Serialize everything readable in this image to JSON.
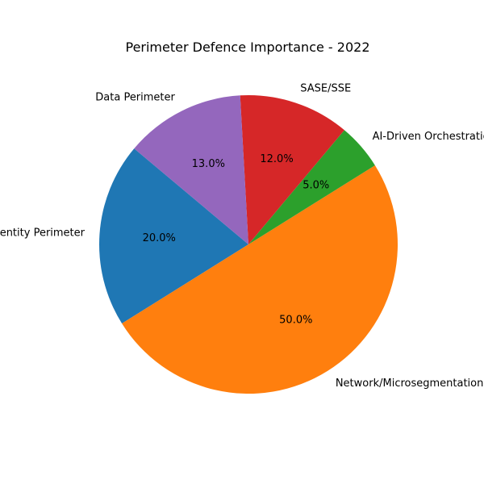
{
  "chart_data": {
    "type": "pie",
    "title": "Perimeter Defence Importance - 2022",
    "labels": [
      "Identity Perimeter",
      "Network/Microsegmentation",
      "AI-Driven Orchestration",
      "SASE/SSE",
      "Data Perimeter"
    ],
    "values": [
      20,
      50,
      5,
      12,
      13
    ],
    "percent_labels": [
      "20.0%",
      "50.0%",
      "5.0%",
      "12.0%",
      "13.0%"
    ],
    "colors": [
      "#1f77b4",
      "#ff7f0e",
      "#2ca02c",
      "#d62728",
      "#9467bd"
    ],
    "start_angle_deg": 140,
    "direction": "counterclockwise"
  }
}
